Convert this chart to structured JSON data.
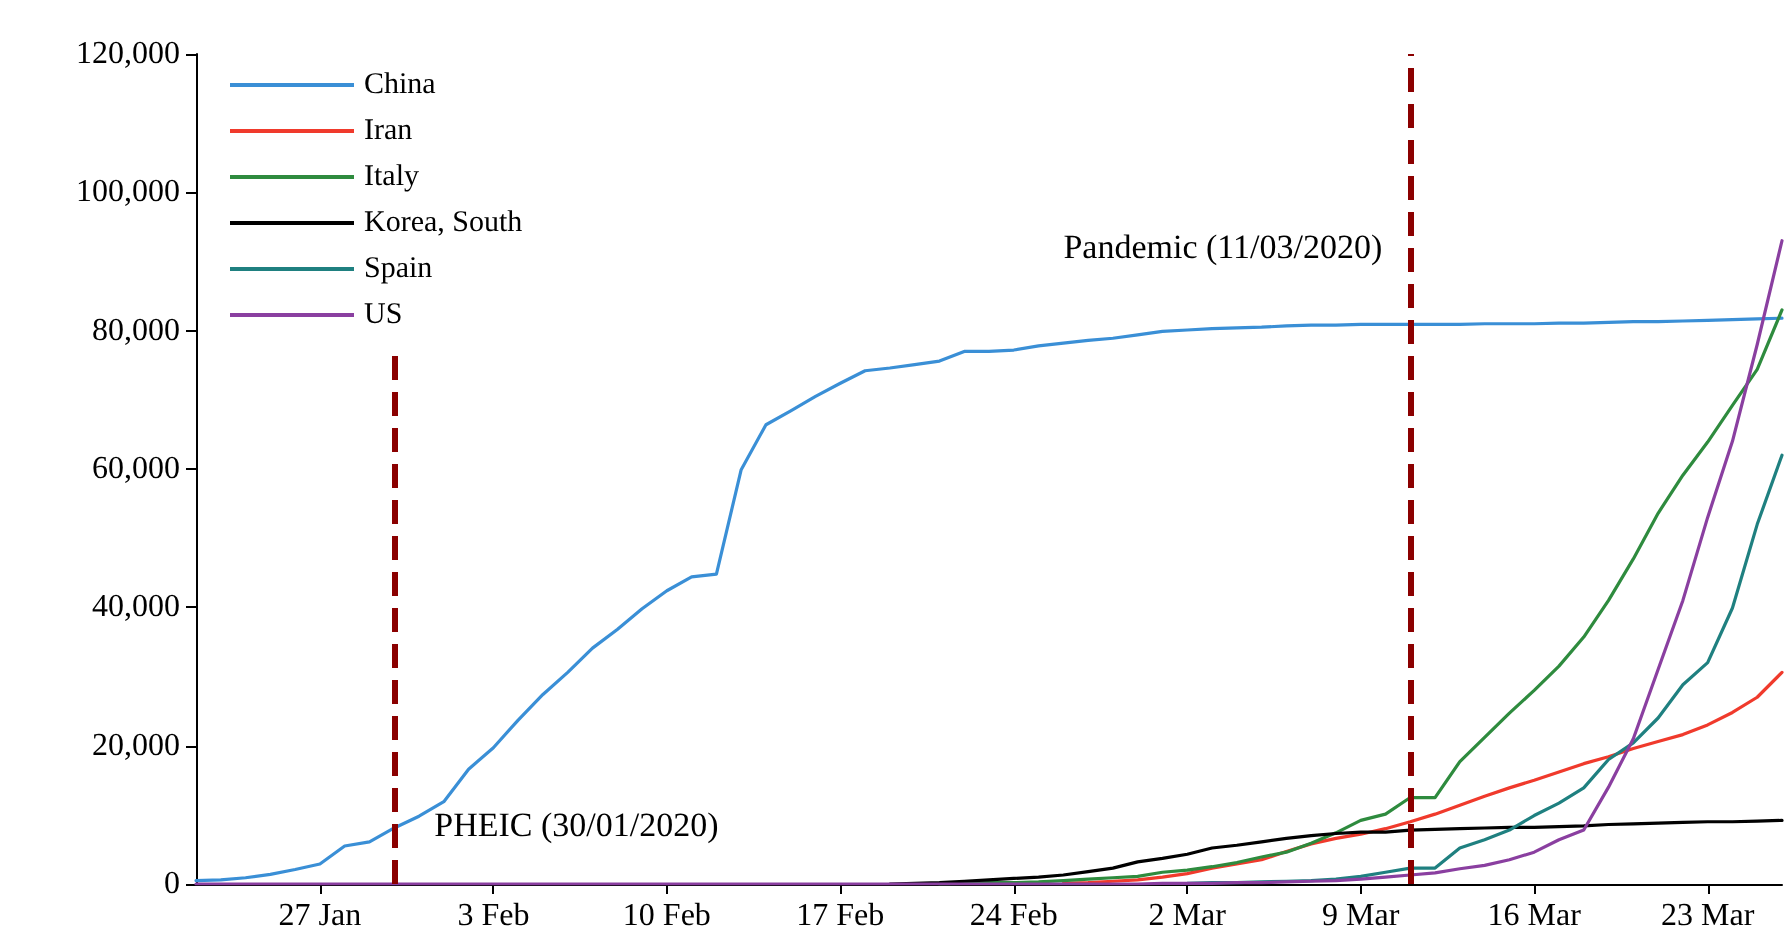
{
  "chart_data": {
    "type": "line",
    "x": [
      "2020-01-22",
      "2020-01-23",
      "2020-01-24",
      "2020-01-25",
      "2020-01-26",
      "2020-01-27",
      "2020-01-28",
      "2020-01-29",
      "2020-01-30",
      "2020-01-31",
      "2020-02-01",
      "2020-02-02",
      "2020-02-03",
      "2020-02-04",
      "2020-02-05",
      "2020-02-06",
      "2020-02-07",
      "2020-02-08",
      "2020-02-09",
      "2020-02-10",
      "2020-02-11",
      "2020-02-12",
      "2020-02-13",
      "2020-02-14",
      "2020-02-15",
      "2020-02-16",
      "2020-02-17",
      "2020-02-18",
      "2020-02-19",
      "2020-02-20",
      "2020-02-21",
      "2020-02-22",
      "2020-02-23",
      "2020-02-24",
      "2020-02-25",
      "2020-02-26",
      "2020-02-27",
      "2020-02-28",
      "2020-02-29",
      "2020-03-01",
      "2020-03-02",
      "2020-03-03",
      "2020-03-04",
      "2020-03-05",
      "2020-03-06",
      "2020-03-07",
      "2020-03-08",
      "2020-03-09",
      "2020-03-10",
      "2020-03-11",
      "2020-03-12",
      "2020-03-13",
      "2020-03-14",
      "2020-03-15",
      "2020-03-16",
      "2020-03-17",
      "2020-03-18",
      "2020-03-19",
      "2020-03-20",
      "2020-03-21",
      "2020-03-22",
      "2020-03-23",
      "2020-03-24",
      "2020-03-25",
      "2020-03-26"
    ],
    "series": [
      {
        "name": "China",
        "color": "#3a8fd6",
        "values": [
          500,
          600,
          900,
          1400,
          2100,
          2900,
          5500,
          6100,
          8100,
          9800,
          11900,
          16600,
          19700,
          23700,
          27400,
          30600,
          34100,
          36800,
          39800,
          42400,
          44400,
          44800,
          59900,
          66400,
          68400,
          70500,
          72400,
          74200,
          74600,
          75100,
          75600,
          77000,
          77000,
          77200,
          77800,
          78200,
          78600,
          78900,
          79400,
          79900,
          80100,
          80300,
          80400,
          80500,
          80700,
          80800,
          80800,
          80900,
          80900,
          80900,
          80900,
          80900,
          81000,
          81000,
          81000,
          81100,
          81100,
          81200,
          81300,
          81300,
          81400,
          81500,
          81600,
          81700,
          81800
        ]
      },
      {
        "name": "Iran",
        "color": "#f03a2c",
        "values": [
          null,
          null,
          null,
          null,
          null,
          null,
          null,
          null,
          null,
          null,
          null,
          null,
          null,
          null,
          null,
          null,
          null,
          null,
          null,
          null,
          null,
          null,
          null,
          null,
          null,
          null,
          null,
          null,
          null,
          null,
          null,
          null,
          null,
          null,
          null,
          100,
          200,
          400,
          600,
          1000,
          1500,
          2300,
          2900,
          3500,
          4700,
          5800,
          6600,
          7200,
          8000,
          9000,
          10100,
          11400,
          12700,
          13900,
          15000,
          16200,
          17400,
          18400,
          19600,
          20600,
          21600,
          23000,
          24800,
          27000,
          30600
        ]
      },
      {
        "name": "Italy",
        "color": "#2e8b3e",
        "values": [
          null,
          null,
          null,
          null,
          null,
          null,
          null,
          null,
          null,
          null,
          null,
          null,
          null,
          null,
          null,
          null,
          null,
          null,
          null,
          null,
          null,
          null,
          null,
          null,
          null,
          null,
          null,
          null,
          null,
          null,
          0,
          100,
          200,
          200,
          300,
          500,
          700,
          900,
          1100,
          1700,
          2000,
          2500,
          3100,
          3900,
          4600,
          5900,
          7400,
          9200,
          10100,
          12500,
          12500,
          17700,
          21200,
          24700,
          28000,
          31500,
          35700,
          41000,
          47000,
          53600,
          59100,
          63900,
          69200,
          74400,
          83000
        ]
      },
      {
        "name": "Korea, South",
        "color": "#000000",
        "values": [
          null,
          null,
          null,
          null,
          null,
          null,
          null,
          null,
          null,
          null,
          null,
          null,
          null,
          null,
          null,
          null,
          null,
          null,
          null,
          null,
          null,
          null,
          null,
          null,
          null,
          null,
          null,
          null,
          0,
          100,
          200,
          400,
          600,
          800,
          1000,
          1300,
          1800,
          2300,
          3200,
          3700,
          4300,
          5200,
          5600,
          6100,
          6600,
          7000,
          7300,
          7500,
          7500,
          7800,
          7900,
          8000,
          8100,
          8200,
          8200,
          8300,
          8400,
          8600,
          8700,
          8800,
          8900,
          9000,
          9000,
          9100,
          9200
        ]
      },
      {
        "name": "Spain",
        "color": "#1f8080",
        "values": [
          null,
          null,
          null,
          null,
          null,
          null,
          null,
          null,
          null,
          null,
          null,
          null,
          null,
          null,
          null,
          null,
          null,
          null,
          null,
          null,
          null,
          null,
          null,
          null,
          null,
          null,
          null,
          null,
          null,
          null,
          null,
          null,
          null,
          null,
          null,
          null,
          null,
          null,
          null,
          null,
          100,
          200,
          200,
          300,
          400,
          500,
          700,
          1100,
          1700,
          2300,
          2300,
          5200,
          6400,
          7800,
          9900,
          11700,
          13900,
          18000,
          20400,
          24000,
          28800,
          32000,
          39900,
          52000,
          62000
        ]
      },
      {
        "name": "US",
        "color": "#8a3fa0",
        "values": [
          0,
          0,
          0,
          0,
          0,
          0,
          0,
          0,
          0,
          0,
          0,
          0,
          0,
          0,
          0,
          0,
          0,
          0,
          0,
          0,
          0,
          0,
          0,
          0,
          0,
          0,
          0,
          0,
          0,
          0,
          0,
          0,
          0,
          0,
          0,
          0,
          0,
          0,
          0,
          100,
          100,
          100,
          200,
          200,
          300,
          400,
          500,
          700,
          1000,
          1300,
          1600,
          2200,
          2700,
          3500,
          4600,
          6400,
          7800,
          14000,
          21000,
          31000,
          41000,
          53000,
          64000,
          78000,
          93000
        ]
      }
    ],
    "xlim": [
      "2020-01-22",
      "2020-03-26"
    ],
    "xticks": [
      {
        "value": "2020-01-27",
        "label": "27 Jan"
      },
      {
        "value": "2020-02-03",
        "label": "3 Feb"
      },
      {
        "value": "2020-02-10",
        "label": "10 Feb"
      },
      {
        "value": "2020-02-17",
        "label": "17 Feb"
      },
      {
        "value": "2020-02-24",
        "label": "24 Feb"
      },
      {
        "value": "2020-03-02",
        "label": "2 Mar"
      },
      {
        "value": "2020-03-09",
        "label": "9 Mar"
      },
      {
        "value": "2020-03-16",
        "label": "16 Mar"
      },
      {
        "value": "2020-03-23",
        "label": "23 Mar"
      }
    ],
    "ylim": [
      0,
      120000
    ],
    "yticks": [
      {
        "value": 0,
        "label": "0"
      },
      {
        "value": 20000,
        "label": "20,000"
      },
      {
        "value": 40000,
        "label": "40,000"
      },
      {
        "value": 60000,
        "label": "60,000"
      },
      {
        "value": 80000,
        "label": "80,000"
      },
      {
        "value": 100000,
        "label": "100,000"
      },
      {
        "value": 120000,
        "label": "120,000"
      }
    ],
    "ref_lines": [
      {
        "axis": "x",
        "value": "2020-01-30",
        "label": "PHEIC (30/01/2020)",
        "color": "#8b0000",
        "line_style": "dashed"
      },
      {
        "axis": "x",
        "value": "2020-03-11",
        "label": "Pandemic (11/03/2020)",
        "color": "#8b0000",
        "line_style": "dashed"
      }
    ],
    "grid": false,
    "legend": "top left",
    "marker": "none",
    "line_style": "solid"
  }
}
